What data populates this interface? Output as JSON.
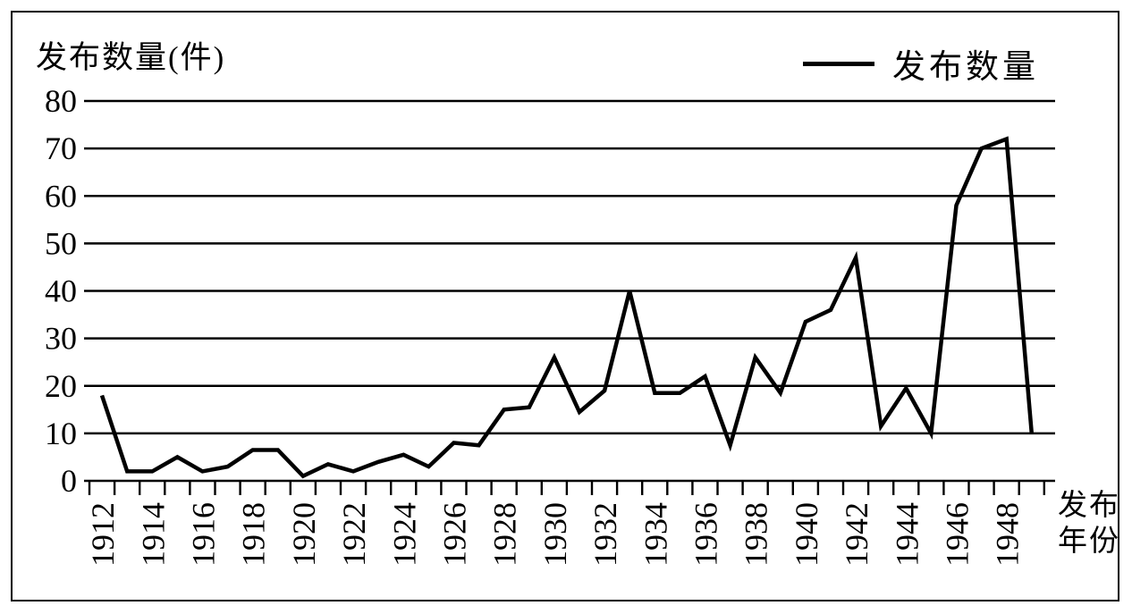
{
  "chart_data": {
    "type": "line",
    "title": "",
    "y_axis_title": "发布数量(件)",
    "x_axis_title": "发布年份",
    "x_axis_title_lines": [
      "发布",
      "年份"
    ],
    "legend": {
      "position": "top-right",
      "entries": [
        {
          "label": "发布数量",
          "color": "#000000"
        }
      ]
    },
    "x": [
      1912,
      1913,
      1914,
      1915,
      1916,
      1917,
      1918,
      1919,
      1920,
      1921,
      1922,
      1923,
      1924,
      1925,
      1926,
      1927,
      1928,
      1929,
      1930,
      1931,
      1932,
      1933,
      1934,
      1935,
      1936,
      1937,
      1938,
      1939,
      1940,
      1941,
      1942,
      1943,
      1944,
      1945,
      1946,
      1947,
      1948,
      1949
    ],
    "series": [
      {
        "name": "发布数量",
        "color": "#000000",
        "values": [
          18,
          2,
          2,
          5,
          2,
          3,
          6.5,
          6.5,
          1,
          3.5,
          2,
          4,
          5.5,
          3,
          8,
          7.5,
          15,
          15.5,
          26,
          14.5,
          19,
          40,
          18.5,
          18.5,
          22,
          7.5,
          26,
          18.5,
          33.5,
          36,
          47,
          11.5,
          19.5,
          10,
          58,
          70,
          72,
          10
        ]
      }
    ],
    "ylim": [
      0,
      80
    ],
    "yticks": [
      0,
      10,
      20,
      30,
      40,
      50,
      60,
      70,
      80
    ],
    "xtick_labels": [
      "1912",
      "1914",
      "1916",
      "1918",
      "1920",
      "1922",
      "1924",
      "1926",
      "1928",
      "1930",
      "1932",
      "1934",
      "1936",
      "1938",
      "1940",
      "1942",
      "1944",
      "1946",
      "1948"
    ],
    "grid": "horizontal",
    "background": "#ffffff",
    "line_color": "#000000"
  }
}
